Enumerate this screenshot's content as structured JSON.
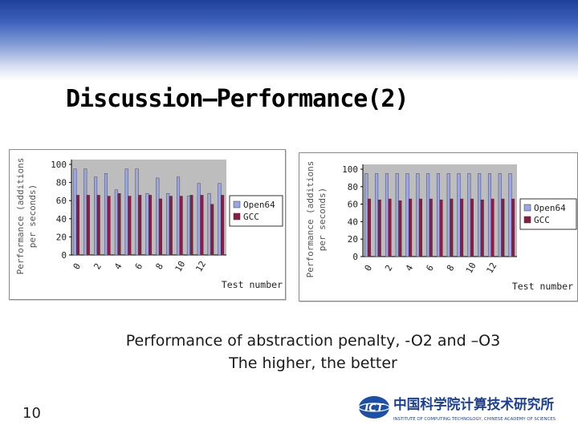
{
  "slide": {
    "title": "Discussion—Performance(2)",
    "caption_line1": "Performance of abstraction penalty, -O2 and –O3",
    "caption_line2": "The higher, the better",
    "page_number": "10",
    "logo_text_main": "中国科学院计算技术研究所",
    "logo_text_sub": "INSTITUTE OF COMPUTING TECHNOLOGY, CHINESE ACADEMY OF SCIENCES",
    "logo_mark": "ICT"
  },
  "colors": {
    "open64": "#9aa6e6",
    "gcc": "#8c1c46",
    "header_dark": "#1f3f9a",
    "header_light": "#d6def0"
  },
  "chart_data": [
    {
      "type": "bar",
      "ylabel_line1": "Performance (additions",
      "ylabel_line2": "per seconds)",
      "xlabel": "Test number",
      "ylim": [
        0,
        100
      ],
      "yticks": [
        0,
        20,
        40,
        60,
        80,
        100
      ],
      "xtick_labels": [
        "0",
        "2",
        "4",
        "6",
        "8",
        "10",
        "12"
      ],
      "categories": [
        0,
        1,
        2,
        3,
        4,
        5,
        6,
        7,
        8,
        9,
        10,
        11,
        12,
        13,
        14
      ],
      "series": [
        {
          "name": "Open64",
          "values": [
            95,
            95,
            86,
            90,
            72,
            95,
            95,
            68,
            85,
            68,
            86,
            65,
            79,
            68,
            79
          ]
        },
        {
          "name": "GCC",
          "values": [
            66,
            66,
            66,
            65,
            68,
            65,
            66,
            66,
            62,
            65,
            65,
            66,
            66,
            56,
            66
          ]
        }
      ],
      "legend_position": "right",
      "grid": false
    },
    {
      "type": "bar",
      "ylabel_line1": "Performance (additions",
      "ylabel_line2": "per seconds)",
      "xlabel": "Test number",
      "ylim": [
        0,
        100
      ],
      "yticks": [
        0,
        20,
        40,
        60,
        80,
        100
      ],
      "xtick_labels": [
        "0",
        "2",
        "4",
        "6",
        "8",
        "10",
        "12"
      ],
      "categories": [
        0,
        1,
        2,
        3,
        4,
        5,
        6,
        7,
        8,
        9,
        10,
        11,
        12,
        13,
        14
      ],
      "series": [
        {
          "name": "Open64",
          "values": [
            95,
            95,
            95,
            95,
            95,
            95,
            95,
            95,
            95,
            95,
            95,
            95,
            95,
            95,
            95
          ]
        },
        {
          "name": "GCC",
          "values": [
            66,
            65,
            66,
            64,
            66,
            66,
            66,
            65,
            66,
            66,
            66,
            65,
            66,
            66,
            66
          ]
        }
      ],
      "legend_position": "right",
      "grid": false
    }
  ]
}
